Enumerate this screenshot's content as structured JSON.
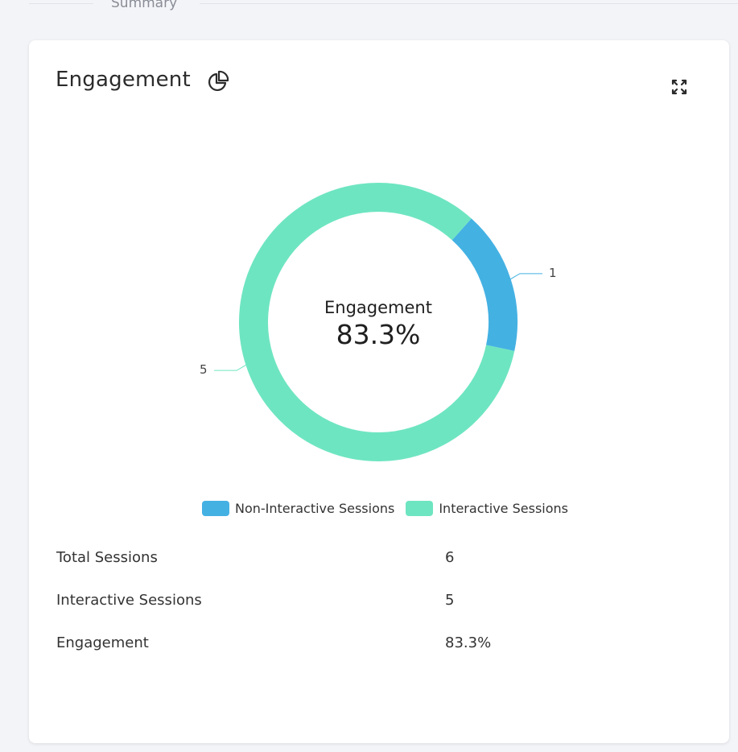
{
  "header": {
    "tab_label": "Summary"
  },
  "card": {
    "title": "Engagement",
    "title_icon": "pie-chart-icon",
    "expand_icon": "expand-icon"
  },
  "chart_data": {
    "type": "pie",
    "center_label": "Engagement",
    "center_value": "83.3%",
    "categories": [
      "Non-Interactive Sessions",
      "Interactive Sessions"
    ],
    "values": [
      1,
      5
    ],
    "colors": [
      "#44b1e3",
      "#6ee5c1"
    ],
    "legend_position": "bottom"
  },
  "legend": [
    {
      "label": "Non-Interactive Sessions",
      "color": "#44b1e3"
    },
    {
      "label": "Interactive Sessions",
      "color": "#6ee5c1"
    }
  ],
  "stats": [
    {
      "label": "Total Sessions",
      "value": "6"
    },
    {
      "label": "Interactive Sessions",
      "value": "5"
    },
    {
      "label": "Engagement",
      "value": "83.3%"
    }
  ]
}
